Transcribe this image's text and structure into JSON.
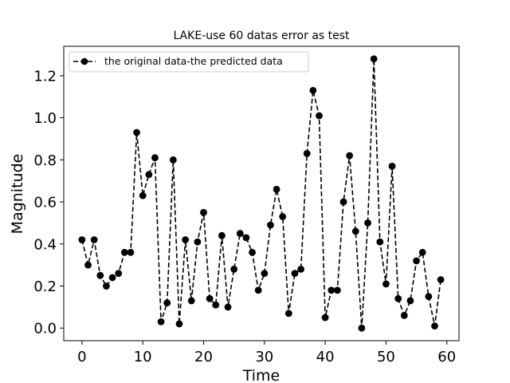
{
  "chart_data": {
    "type": "line",
    "title": "LAKE-use 60 datas error as test",
    "xlabel": "Time",
    "ylabel": "Magnitude",
    "xlim": [
      -3,
      62
    ],
    "ylim": [
      -0.06,
      1.34
    ],
    "xticks": [
      0,
      10,
      20,
      30,
      40,
      50,
      60
    ],
    "yticks": [
      0.0,
      0.2,
      0.4,
      0.6,
      0.8,
      1.0,
      1.2
    ],
    "xtick_labels": [
      "0",
      "10",
      "20",
      "30",
      "40",
      "50",
      "60"
    ],
    "ytick_labels": [
      "0.0",
      "0.2",
      "0.4",
      "0.6",
      "0.8",
      "1.0",
      "1.2"
    ],
    "grid": false,
    "legend_position": "top-left",
    "series": [
      {
        "name": "the original data-the predicted data",
        "color": "#000000",
        "line_style": "dashed",
        "marker": "circle",
        "x": [
          0,
          1,
          2,
          3,
          4,
          5,
          6,
          7,
          8,
          9,
          10,
          11,
          12,
          13,
          14,
          15,
          16,
          17,
          18,
          19,
          20,
          21,
          22,
          23,
          24,
          25,
          26,
          27,
          28,
          29,
          30,
          31,
          32,
          33,
          34,
          35,
          36,
          37,
          38,
          39,
          40,
          41,
          42,
          43,
          44,
          45,
          46,
          47,
          48,
          49,
          50,
          51,
          52,
          53,
          54,
          55,
          56,
          57,
          58,
          59
        ],
        "values": [
          0.42,
          0.3,
          0.42,
          0.25,
          0.2,
          0.24,
          0.26,
          0.36,
          0.36,
          0.93,
          0.63,
          0.73,
          0.81,
          0.03,
          0.12,
          0.8,
          0.02,
          0.42,
          0.13,
          0.41,
          0.55,
          0.14,
          0.11,
          0.44,
          0.1,
          0.28,
          0.45,
          0.43,
          0.36,
          0.18,
          0.26,
          0.49,
          0.66,
          0.53,
          0.07,
          0.26,
          0.28,
          0.83,
          1.13,
          1.01,
          0.05,
          0.18,
          0.18,
          0.6,
          0.82,
          0.46,
          0.0,
          0.5,
          1.28,
          0.41,
          0.21,
          0.77,
          0.14,
          0.06,
          0.13,
          0.32,
          0.36,
          0.15,
          0.01,
          0.23
        ]
      }
    ]
  }
}
